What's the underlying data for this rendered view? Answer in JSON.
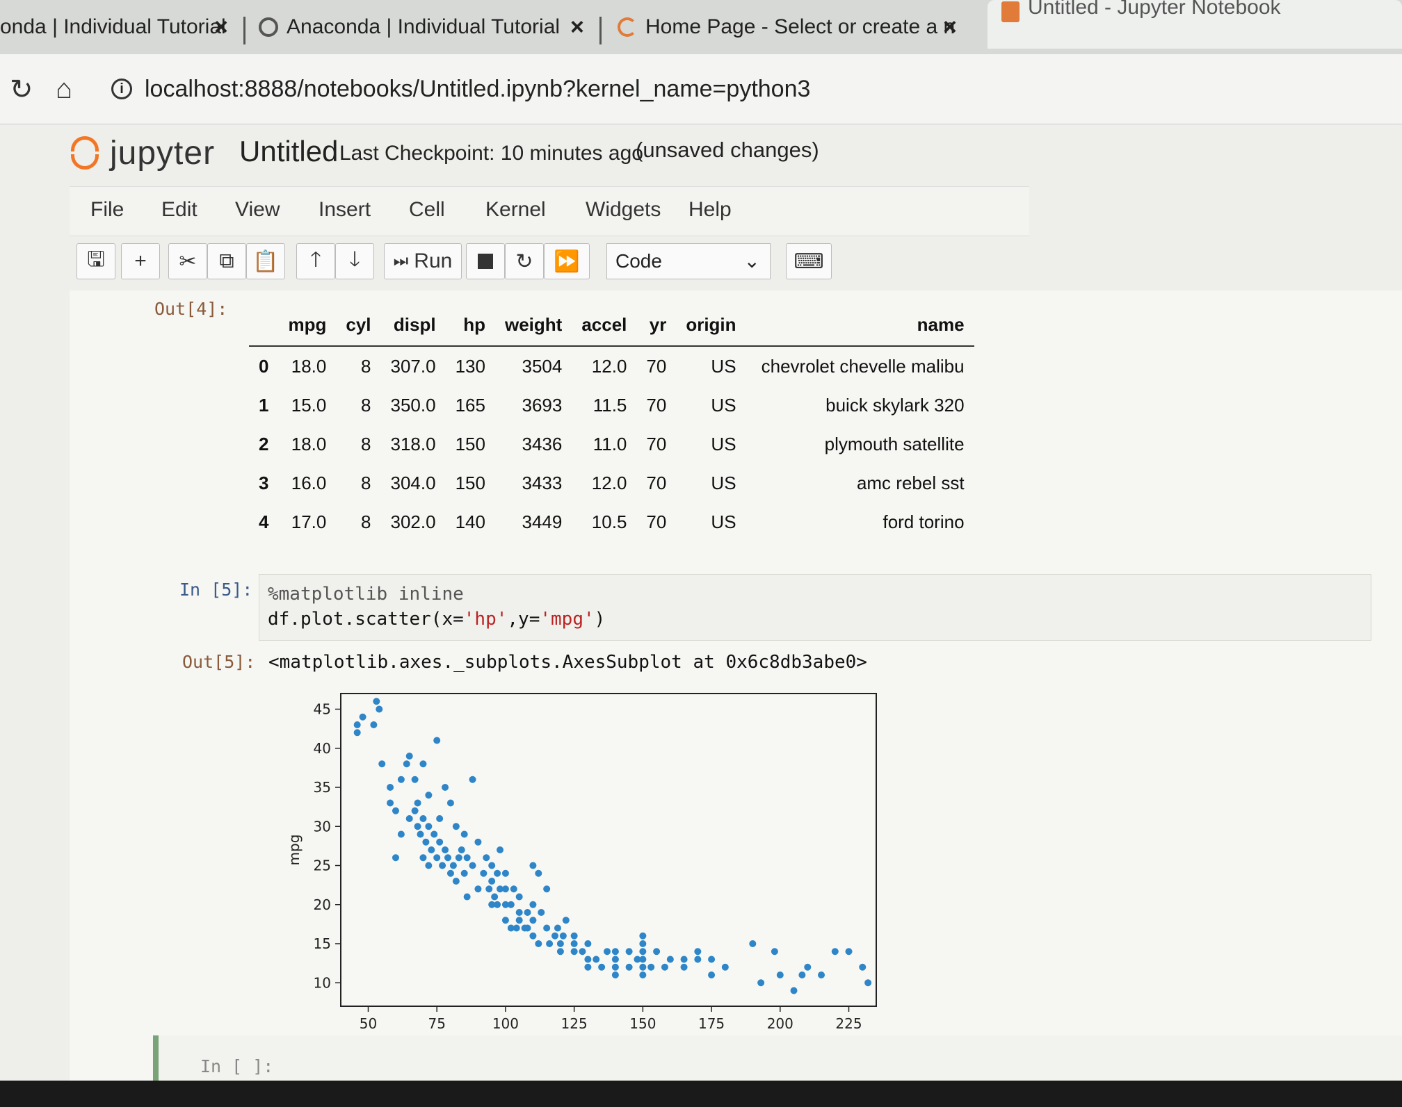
{
  "browser": {
    "tabs": [
      {
        "label": "onda | Individual Tutorial"
      },
      {
        "label": "Anaconda | Individual Tutorial"
      },
      {
        "label": "Home Page - Select or create a n"
      },
      {
        "label": "Untitled - Jupyter Notebook"
      }
    ],
    "url": "localhost:8888/notebooks/Untitled.ipynb?kernel_name=python3"
  },
  "jupyter": {
    "logo_text": "jupyter",
    "notebook_title": "Untitled",
    "checkpoint": "Last Checkpoint: 10 minutes ago",
    "save_status": "(unsaved changes)",
    "menu": [
      "File",
      "Edit",
      "View",
      "Insert",
      "Cell",
      "Kernel",
      "Widgets",
      "Help"
    ],
    "toolbar": {
      "run_label": "Run",
      "cell_type": "Code"
    }
  },
  "cells": {
    "out4_prompt": "Out[4]:",
    "dataframe": {
      "columns": [
        "",
        "mpg",
        "cyl",
        "displ",
        "hp",
        "weight",
        "accel",
        "yr",
        "origin",
        "name"
      ],
      "rows": [
        [
          "0",
          "18.0",
          "8",
          "307.0",
          "130",
          "3504",
          "12.0",
          "70",
          "US",
          "chevrolet chevelle malibu"
        ],
        [
          "1",
          "15.0",
          "8",
          "350.0",
          "165",
          "3693",
          "11.5",
          "70",
          "US",
          "buick skylark 320"
        ],
        [
          "2",
          "18.0",
          "8",
          "318.0",
          "150",
          "3436",
          "11.0",
          "70",
          "US",
          "plymouth satellite"
        ],
        [
          "3",
          "16.0",
          "8",
          "304.0",
          "150",
          "3433",
          "12.0",
          "70",
          "US",
          "amc rebel sst"
        ],
        [
          "4",
          "17.0",
          "8",
          "302.0",
          "140",
          "3449",
          "10.5",
          "70",
          "US",
          "ford torino"
        ]
      ]
    },
    "in5_prompt": "In [5]:",
    "code_line1": "%matplotlib inline",
    "code_line2_pre": "df.plot.scatter(x=",
    "code_line2_x": "'hp'",
    "code_line2_mid": ",y=",
    "code_line2_y": "'mpg'",
    "code_line2_post": ")",
    "out5_prompt": "Out[5]:",
    "out5_text": "<matplotlib.axes._subplots.AxesSubplot at 0x6c8db3abe0>",
    "empty_prompt": "In [ ]:"
  },
  "colors": {
    "point": "#2e86c8",
    "jupyter_orange": "#f37626"
  },
  "chart_data": {
    "type": "scatter",
    "xlabel": "hp",
    "ylabel": "mpg",
    "xlim": [
      40,
      235
    ],
    "ylim": [
      7,
      47
    ],
    "xticks": [
      50,
      75,
      100,
      125,
      150,
      175,
      200,
      225
    ],
    "yticks": [
      10,
      15,
      20,
      25,
      30,
      35,
      40,
      45
    ],
    "points": [
      [
        46,
        43
      ],
      [
        48,
        44
      ],
      [
        46,
        42
      ],
      [
        52,
        43
      ],
      [
        53,
        46
      ],
      [
        54,
        45
      ],
      [
        58,
        35
      ],
      [
        60,
        32
      ],
      [
        62,
        36
      ],
      [
        64,
        38
      ],
      [
        65,
        39
      ],
      [
        67,
        36
      ],
      [
        68,
        33
      ],
      [
        70,
        38
      ],
      [
        72,
        34
      ],
      [
        75,
        41
      ],
      [
        76,
        31
      ],
      [
        78,
        35
      ],
      [
        80,
        33
      ],
      [
        82,
        30
      ],
      [
        65,
        31
      ],
      [
        67,
        32
      ],
      [
        68,
        30
      ],
      [
        69,
        29
      ],
      [
        70,
        31
      ],
      [
        71,
        28
      ],
      [
        72,
        30
      ],
      [
        73,
        27
      ],
      [
        74,
        29
      ],
      [
        75,
        26
      ],
      [
        76,
        28
      ],
      [
        77,
        25
      ],
      [
        78,
        27
      ],
      [
        79,
        26
      ],
      [
        80,
        24
      ],
      [
        81,
        25
      ],
      [
        82,
        23
      ],
      [
        83,
        26
      ],
      [
        84,
        27
      ],
      [
        85,
        24
      ],
      [
        86,
        26
      ],
      [
        88,
        25
      ],
      [
        88,
        36
      ],
      [
        90,
        28
      ],
      [
        90,
        22
      ],
      [
        92,
        24
      ],
      [
        93,
        26
      ],
      [
        95,
        23
      ],
      [
        95,
        25
      ],
      [
        96,
        21
      ],
      [
        97,
        24
      ],
      [
        98,
        27
      ],
      [
        100,
        20
      ],
      [
        100,
        22
      ],
      [
        100,
        24
      ],
      [
        100,
        18
      ],
      [
        102,
        20
      ],
      [
        103,
        22
      ],
      [
        105,
        19
      ],
      [
        105,
        18
      ],
      [
        105,
        21
      ],
      [
        108,
        17
      ],
      [
        110,
        18
      ],
      [
        110,
        20
      ],
      [
        110,
        16
      ],
      [
        110,
        25
      ],
      [
        112,
        15
      ],
      [
        113,
        19
      ],
      [
        115,
        17
      ],
      [
        115,
        22
      ],
      [
        116,
        15
      ],
      [
        118,
        16
      ],
      [
        119,
        17
      ],
      [
        120,
        15
      ],
      [
        120,
        14
      ],
      [
        121,
        16
      ],
      [
        122,
        18
      ],
      [
        125,
        15
      ],
      [
        125,
        14
      ],
      [
        125,
        16
      ],
      [
        128,
        14
      ],
      [
        130,
        13
      ],
      [
        130,
        15
      ],
      [
        130,
        12
      ],
      [
        133,
        13
      ],
      [
        135,
        12
      ],
      [
        137,
        14
      ],
      [
        140,
        12
      ],
      [
        140,
        13
      ],
      [
        140,
        14
      ],
      [
        140,
        11
      ],
      [
        145,
        12
      ],
      [
        145,
        14
      ],
      [
        148,
        13
      ],
      [
        150,
        13
      ],
      [
        150,
        14
      ],
      [
        150,
        15
      ],
      [
        150,
        11
      ],
      [
        150,
        12
      ],
      [
        150,
        16
      ],
      [
        153,
        12
      ],
      [
        155,
        14
      ],
      [
        158,
        12
      ],
      [
        160,
        13
      ],
      [
        165,
        13
      ],
      [
        165,
        12
      ],
      [
        170,
        13
      ],
      [
        170,
        14
      ],
      [
        175,
        11
      ],
      [
        175,
        13
      ],
      [
        180,
        12
      ],
      [
        190,
        15
      ],
      [
        193,
        10
      ],
      [
        198,
        14
      ],
      [
        200,
        11
      ],
      [
        205,
        9
      ],
      [
        208,
        11
      ],
      [
        210,
        12
      ],
      [
        215,
        11
      ],
      [
        220,
        14
      ],
      [
        225,
        14
      ],
      [
        230,
        12
      ],
      [
        232,
        10
      ],
      [
        58,
        33
      ],
      [
        55,
        38
      ],
      [
        62,
        29
      ],
      [
        85,
        29
      ],
      [
        60,
        26
      ],
      [
        94,
        22
      ],
      [
        112,
        24
      ],
      [
        102,
        17
      ],
      [
        108,
        19
      ],
      [
        95,
        20
      ],
      [
        97,
        20
      ],
      [
        98,
        22
      ],
      [
        104,
        17
      ],
      [
        107,
        17
      ],
      [
        70,
        26
      ],
      [
        72,
        25
      ],
      [
        86,
        21
      ]
    ]
  }
}
